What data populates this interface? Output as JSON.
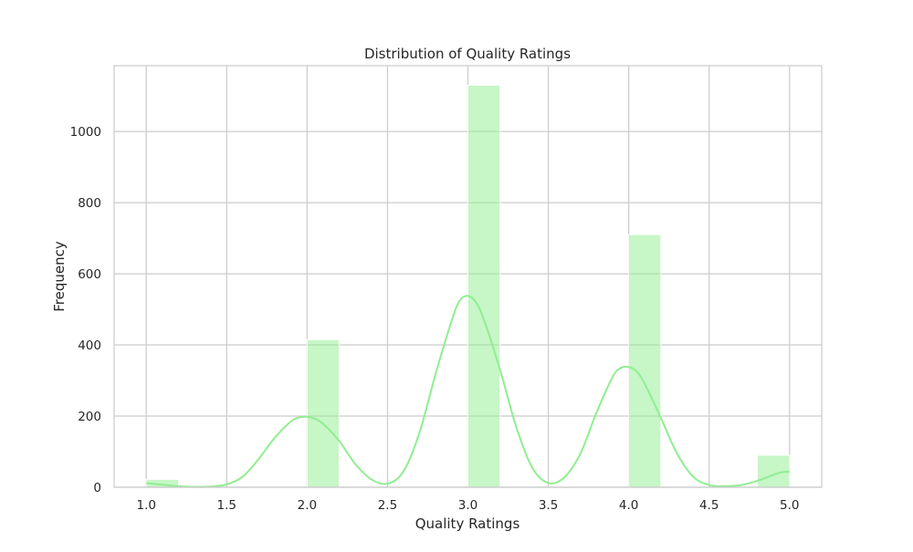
{
  "chart_data": {
    "type": "bar",
    "title": "Distribution of Quality Ratings",
    "xlabel": "Quality Ratings",
    "ylabel": "Frequency",
    "xlim": [
      0.8,
      5.2
    ],
    "ylim": [
      0,
      1185
    ],
    "x_ticks": [
      "1.0",
      "1.5",
      "2.0",
      "2.5",
      "3.0",
      "3.5",
      "4.0",
      "4.5",
      "5.0"
    ],
    "y_ticks": [
      "0",
      "200",
      "400",
      "600",
      "800",
      "1000"
    ],
    "grid": true,
    "bar_color": "#90ee90",
    "kde_color": "#90ee90",
    "histogram": {
      "bins": [
        {
          "x0": 1.0,
          "x1": 1.2,
          "count": 22
        },
        {
          "x0": 2.0,
          "x1": 2.2,
          "count": 415
        },
        {
          "x0": 3.0,
          "x1": 3.2,
          "count": 1130
        },
        {
          "x0": 4.0,
          "x1": 4.2,
          "count": 710
        },
        {
          "x0": 4.8,
          "x1": 5.0,
          "count": 90
        }
      ]
    },
    "kde": {
      "x": [
        1.0,
        1.05,
        1.1,
        1.2,
        1.3,
        1.4,
        1.5,
        1.6,
        1.7,
        1.8,
        1.9,
        1.95,
        2.0,
        2.05,
        2.1,
        2.2,
        2.3,
        2.4,
        2.5,
        2.6,
        2.7,
        2.8,
        2.9,
        2.95,
        3.0,
        3.05,
        3.1,
        3.2,
        3.3,
        3.4,
        3.5,
        3.6,
        3.7,
        3.8,
        3.9,
        3.95,
        4.0,
        4.05,
        4.1,
        4.2,
        4.3,
        4.4,
        4.5,
        4.6,
        4.7,
        4.8,
        4.9,
        4.95,
        5.0
      ],
      "y": [
        12,
        9,
        7,
        3,
        1,
        2,
        8,
        30,
        80,
        140,
        185,
        196,
        198,
        192,
        178,
        130,
        65,
        22,
        10,
        45,
        155,
        320,
        470,
        525,
        538,
        520,
        470,
        330,
        170,
        55,
        12,
        28,
        95,
        210,
        310,
        335,
        338,
        325,
        290,
        195,
        95,
        30,
        6,
        3,
        6,
        18,
        35,
        42,
        44
      ]
    }
  }
}
